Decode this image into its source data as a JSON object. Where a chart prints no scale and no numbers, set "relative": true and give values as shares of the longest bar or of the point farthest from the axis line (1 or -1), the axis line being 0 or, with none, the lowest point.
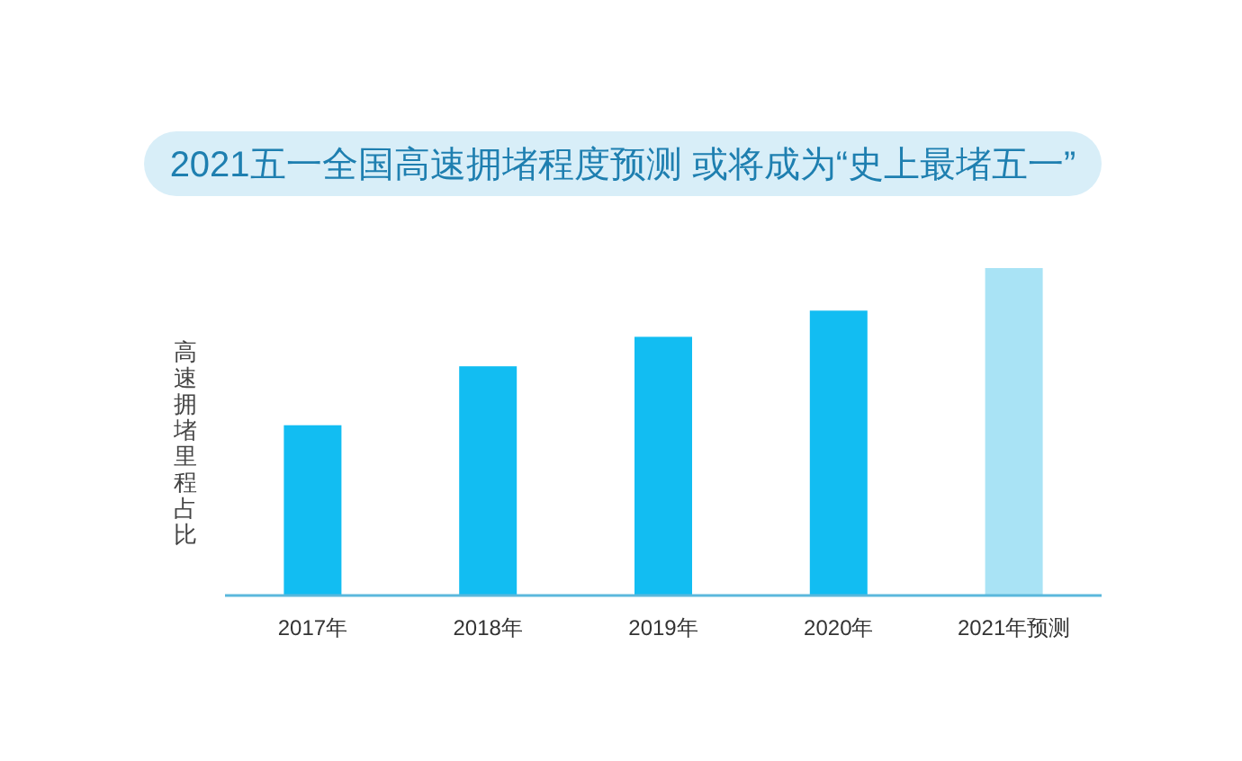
{
  "chart_data": {
    "type": "bar",
    "title": "2021五一全国高速拥堵程度预测 或将成为“史上最堵五一”",
    "ylabel": "高速拥堵里程占比",
    "relative": true,
    "categories": [
      "2017年",
      "2018年",
      "2019年",
      "2020年",
      "2021年预测"
    ],
    "values": [
      0.52,
      0.7,
      0.79,
      0.87,
      1
    ],
    "colors": [
      "#12bdf2",
      "#12bdf2",
      "#12bdf2",
      "#12bdf2",
      "#a9e3f5"
    ]
  }
}
